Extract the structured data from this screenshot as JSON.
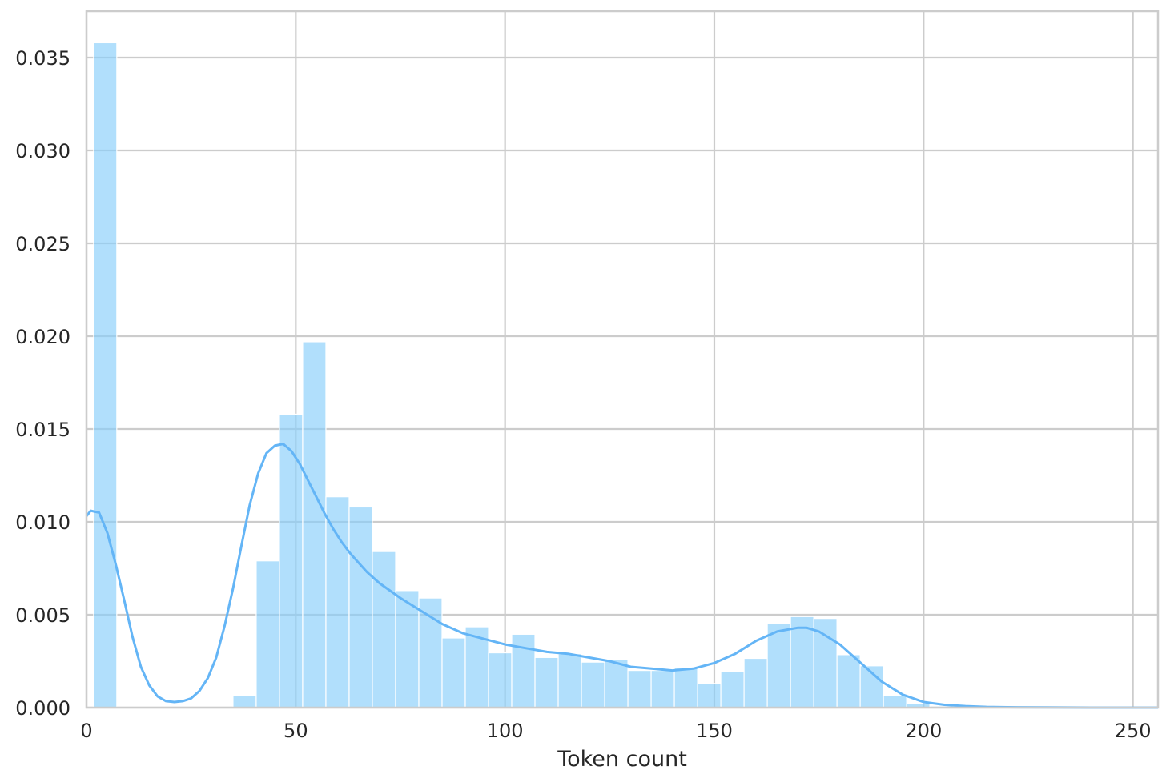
{
  "chart_data": {
    "type": "bar",
    "subtype": "histogram-with-kde",
    "title": "",
    "xlabel": "Token count",
    "ylabel": "",
    "xlim": [
      0,
      256
    ],
    "ylim": [
      0,
      0.0375
    ],
    "grid": true,
    "x_ticks": [
      0,
      50,
      100,
      150,
      200,
      250
    ],
    "x_tick_labels": [
      "0",
      "50",
      "100",
      "150",
      "200",
      "250"
    ],
    "y_ticks": [
      0,
      0.005,
      0.01,
      0.015,
      0.02,
      0.025,
      0.03,
      0.035
    ],
    "y_tick_labels": [
      "0.000",
      "0.005",
      "0.010",
      "0.015",
      "0.020",
      "0.025",
      "0.030",
      "0.035"
    ],
    "colors": {
      "bars": "#87CEFA",
      "bar_opacity": 0.65,
      "kde": "#64B5F6",
      "grid": "#cccccc",
      "text": "#262626"
    },
    "bins": [
      {
        "start": 1.7,
        "end": 7.24,
        "density": 0.0358
      },
      {
        "start": 35.0,
        "end": 40.55,
        "density": 0.00065
      },
      {
        "start": 40.55,
        "end": 46.1,
        "density": 0.0079
      },
      {
        "start": 46.1,
        "end": 51.65,
        "density": 0.0158
      },
      {
        "start": 51.65,
        "end": 57.2,
        "density": 0.0197
      },
      {
        "start": 57.2,
        "end": 62.75,
        "density": 0.01135
      },
      {
        "start": 62.75,
        "end": 68.3,
        "density": 0.0108
      },
      {
        "start": 68.3,
        "end": 73.85,
        "density": 0.0084
      },
      {
        "start": 73.85,
        "end": 79.4,
        "density": 0.0063
      },
      {
        "start": 79.4,
        "end": 84.95,
        "density": 0.0059
      },
      {
        "start": 84.95,
        "end": 90.5,
        "density": 0.00375
      },
      {
        "start": 90.5,
        "end": 96.05,
        "density": 0.00435
      },
      {
        "start": 96.05,
        "end": 101.6,
        "density": 0.00295
      },
      {
        "start": 101.6,
        "end": 107.15,
        "density": 0.00395
      },
      {
        "start": 107.15,
        "end": 112.7,
        "density": 0.0027
      },
      {
        "start": 112.7,
        "end": 118.25,
        "density": 0.0029
      },
      {
        "start": 118.25,
        "end": 123.8,
        "density": 0.00245
      },
      {
        "start": 123.8,
        "end": 129.35,
        "density": 0.0026
      },
      {
        "start": 129.35,
        "end": 134.9,
        "density": 0.002
      },
      {
        "start": 134.9,
        "end": 140.45,
        "density": 0.002
      },
      {
        "start": 140.45,
        "end": 146.0,
        "density": 0.00215
      },
      {
        "start": 146.0,
        "end": 151.55,
        "density": 0.0013
      },
      {
        "start": 151.55,
        "end": 157.1,
        "density": 0.00195
      },
      {
        "start": 157.1,
        "end": 162.65,
        "density": 0.00265
      },
      {
        "start": 162.65,
        "end": 168.2,
        "density": 0.00455
      },
      {
        "start": 168.2,
        "end": 173.75,
        "density": 0.0049
      },
      {
        "start": 173.75,
        "end": 179.3,
        "density": 0.0048
      },
      {
        "start": 179.3,
        "end": 184.85,
        "density": 0.00285
      },
      {
        "start": 184.85,
        "end": 190.4,
        "density": 0.00225
      },
      {
        "start": 190.4,
        "end": 195.95,
        "density": 0.00065
      },
      {
        "start": 195.95,
        "end": 201.5,
        "density": 0.0002
      },
      {
        "start": 201.5,
        "end": 207.05,
        "density": 8e-05
      }
    ],
    "kde": {
      "x": [
        0,
        1,
        3,
        5,
        7,
        9,
        11,
        13,
        15,
        17,
        19,
        21,
        23,
        25,
        27,
        29,
        31,
        33,
        35,
        37,
        39,
        41,
        43,
        45,
        47,
        49,
        51,
        53,
        55,
        57,
        59,
        61,
        63,
        65,
        67,
        70,
        75,
        80,
        85,
        90,
        95,
        100,
        105,
        110,
        115,
        120,
        125,
        130,
        135,
        140,
        145,
        150,
        155,
        160,
        165,
        170,
        172,
        175,
        180,
        185,
        190,
        195,
        200,
        205,
        210,
        215,
        220,
        230,
        240,
        256
      ],
      "y": [
        0.0103,
        0.0106,
        0.0105,
        0.0094,
        0.0077,
        0.0058,
        0.0038,
        0.0022,
        0.0012,
        0.0006,
        0.00035,
        0.0003,
        0.00035,
        0.0005,
        0.0009,
        0.0016,
        0.0027,
        0.0044,
        0.0064,
        0.0087,
        0.0109,
        0.0126,
        0.0137,
        0.0141,
        0.0142,
        0.0138,
        0.0131,
        0.0122,
        0.0113,
        0.0104,
        0.0096,
        0.0089,
        0.0083,
        0.0078,
        0.0073,
        0.0067,
        0.0059,
        0.0052,
        0.0045,
        0.004,
        0.0037,
        0.0034,
        0.0032,
        0.003,
        0.0029,
        0.0027,
        0.0025,
        0.0022,
        0.0021,
        0.002,
        0.0021,
        0.0024,
        0.0029,
        0.0036,
        0.0041,
        0.0043,
        0.0043,
        0.0041,
        0.0034,
        0.0024,
        0.0014,
        0.0007,
        0.0003,
        0.00015,
        8e-05,
        4e-05,
        2e-05,
        1e-05,
        0.0,
        0.0
      ]
    }
  }
}
